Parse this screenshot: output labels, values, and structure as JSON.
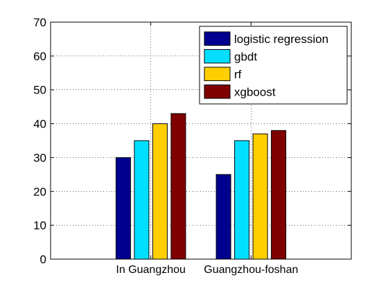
{
  "chart_data": {
    "type": "bar",
    "categories": [
      "In Guangzhou",
      "Guangzhou-foshan"
    ],
    "series": [
      {
        "name": "logistic regression",
        "values": [
          30,
          25
        ],
        "color": "#00008f"
      },
      {
        "name": "gbdt",
        "values": [
          35,
          35
        ],
        "color": "#00dfff"
      },
      {
        "name": "rf",
        "values": [
          40,
          37
        ],
        "color": "#ffcf00"
      },
      {
        "name": "xgboost",
        "values": [
          43,
          38
        ],
        "color": "#7f0000"
      }
    ],
    "ylim": [
      0,
      70
    ],
    "yticks": [
      0,
      10,
      20,
      30,
      40,
      50,
      60,
      70
    ],
    "grid": true,
    "legend_position": "top-right"
  }
}
